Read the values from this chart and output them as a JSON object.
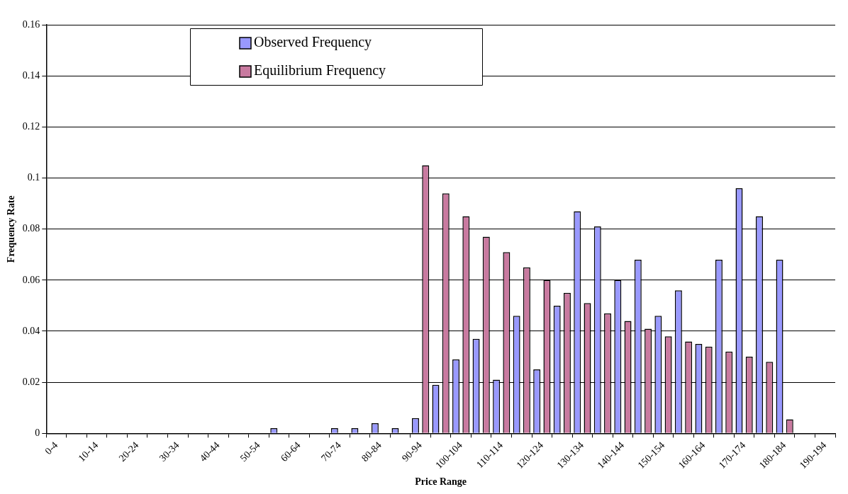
{
  "chart_data": {
    "type": "bar",
    "categories": [
      "0-4",
      null,
      "10-14",
      null,
      "20-24",
      null,
      "30-34",
      null,
      "40-44",
      null,
      "50-54",
      null,
      "60-64",
      null,
      "70-74",
      null,
      "80-84",
      null,
      "90-94",
      null,
      "100-104",
      null,
      "110-114",
      null,
      "120-124",
      null,
      "130-134",
      null,
      "140-144",
      null,
      "150-154",
      null,
      "160-164",
      null,
      "170-174",
      null,
      "180-184",
      null,
      "190-194"
    ],
    "series": [
      {
        "name": "Observed Frequency",
        "color": "#9999ff",
        "values": [
          0,
          0,
          0,
          0,
          0,
          0,
          0,
          0,
          0,
          0,
          0,
          0.002,
          0,
          0,
          0.002,
          0.002,
          0.004,
          0.002,
          0.006,
          0.019,
          0.029,
          0.037,
          0.021,
          0.046,
          0.025,
          0.05,
          0.087,
          0.081,
          0.06,
          0.068,
          0.046,
          0.056,
          0.035,
          0.068,
          0.096,
          0.085,
          0.068,
          0,
          0
        ]
      },
      {
        "name": "Equilibrium Frequency",
        "color": "#c97aa0",
        "values": [
          0,
          0,
          0,
          0,
          0,
          0,
          0,
          0,
          0,
          0,
          0,
          0,
          0,
          0,
          0,
          0,
          0,
          0,
          0.105,
          0.094,
          0.085,
          0.077,
          0.071,
          0.065,
          0.06,
          0.055,
          0.051,
          0.047,
          0.044,
          0.041,
          0.038,
          0.036,
          0.034,
          0.032,
          0.03,
          0.028,
          0.0055,
          0,
          0
        ]
      }
    ],
    "xlabel": "Price Range",
    "ylabel": "Frequency Rate",
    "ylim": [
      0,
      0.16
    ],
    "yticks": [
      0,
      0.02,
      0.04,
      0.06,
      0.08,
      0.1,
      0.12,
      0.14,
      0.16
    ],
    "grid": "y",
    "legend": "top"
  }
}
